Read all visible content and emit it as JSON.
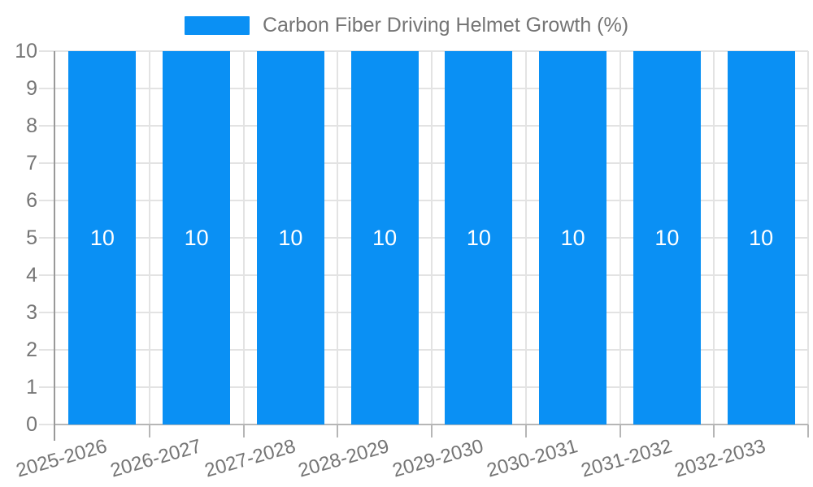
{
  "legend": {
    "label": "Carbon Fiber Driving Helmet Growth (%)"
  },
  "chart_data": {
    "type": "bar",
    "title": "Carbon Fiber Driving Helmet Growth (%)",
    "series_name": "Carbon Fiber Driving Helmet Growth (%)",
    "categories": [
      "2025-2026",
      "2026-2027",
      "2027-2028",
      "2028-2029",
      "2029-2030",
      "2030-2031",
      "2031-2032",
      "2032-2033"
    ],
    "values": [
      10,
      10,
      10,
      10,
      10,
      10,
      10,
      10
    ],
    "bar_labels": [
      "10",
      "10",
      "10",
      "10",
      "10",
      "10",
      "10",
      "10"
    ],
    "xlabel": "",
    "ylabel": "",
    "ylim": [
      0,
      10
    ],
    "yticks": [
      0,
      1,
      2,
      3,
      4,
      5,
      6,
      7,
      8,
      9,
      10
    ],
    "grid": true,
    "legend_position": "top",
    "colors": {
      "bar": "#0a90f4",
      "grid_line": "#e3e3e3",
      "y_axis_line": "#999999",
      "x_axis_line": "#b6b6b6",
      "axis_text": "#757575",
      "bar_label_text": "#ffffff",
      "background": "#ffffff"
    }
  }
}
